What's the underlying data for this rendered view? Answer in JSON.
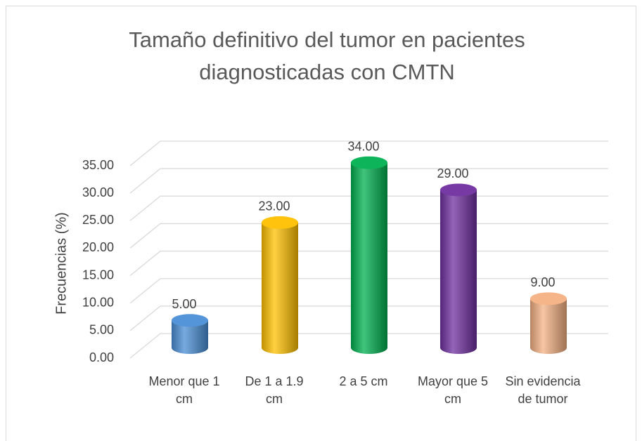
{
  "chart_data": {
    "type": "bar3d",
    "title": "Tamaño definitivo del tumor en pacientes diagnosticadas con CMTN",
    "y_label": "Frecuencias (%)",
    "categories": [
      "Menor que 1 cm",
      "De 1 a 1.9 cm",
      "2 a 5 cm",
      "Mayor que 5 cm",
      "Sin evidencia de tumor"
    ],
    "values": [
      5,
      23,
      34,
      29,
      9
    ],
    "value_labels": [
      "5.00",
      "23.00",
      "34.00",
      "29.00",
      "9.00"
    ],
    "colors": [
      "#4a8fd6",
      "#ffc000",
      "#00b050",
      "#7030a0",
      "#f4b183"
    ],
    "ylim": [
      0,
      35
    ],
    "yticks": [
      {
        "value": 0,
        "label": "0.00"
      },
      {
        "value": 5,
        "label": "5.00"
      },
      {
        "value": 10,
        "label": "10.00"
      },
      {
        "value": 15,
        "label": "15.00"
      },
      {
        "value": 20,
        "label": "20.00"
      },
      {
        "value": 25,
        "label": "25.00"
      },
      {
        "value": 30,
        "label": "30.00"
      },
      {
        "value": 35,
        "label": "35.00"
      }
    ],
    "grid": true
  }
}
